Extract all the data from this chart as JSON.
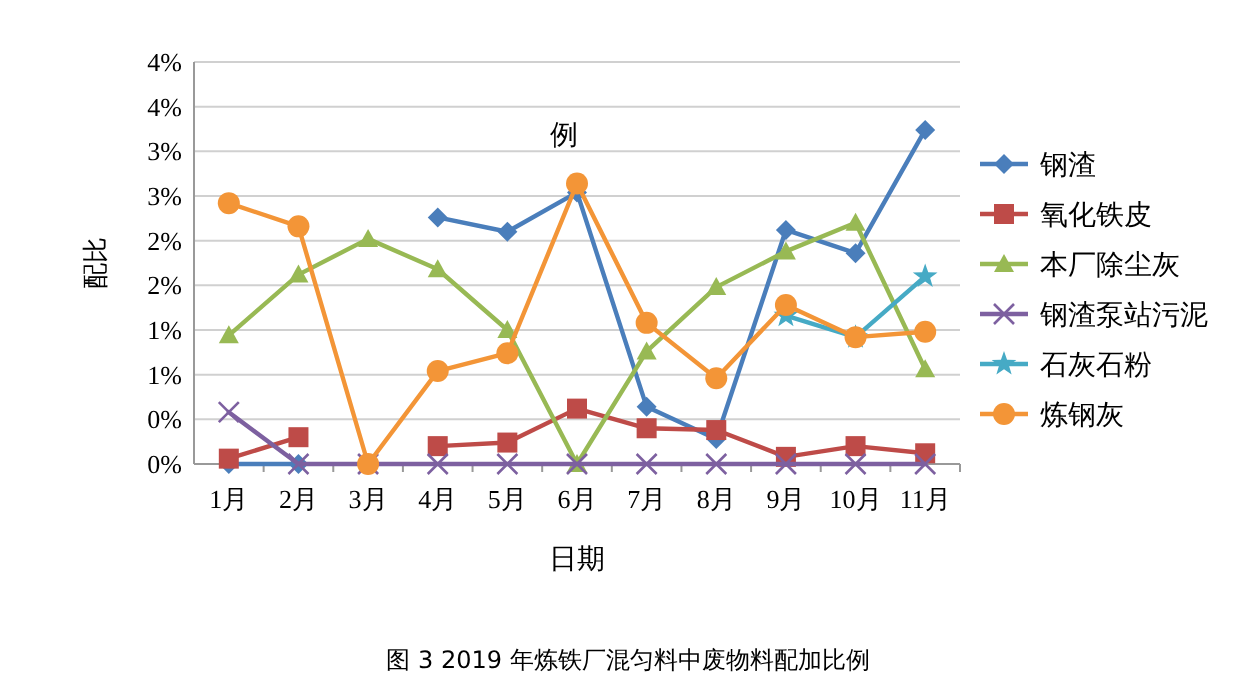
{
  "chart_data": {
    "type": "line",
    "categories": [
      "1月",
      "2月",
      "3月",
      "4月",
      "5月",
      "6月",
      "7月",
      "8月",
      "9月",
      "10月",
      "11月"
    ],
    "xlabel": "日期",
    "ylabel": "配比",
    "ylim": [
      0,
      4.5
    ],
    "yticks": [
      {
        "value": 0,
        "label": "0%"
      },
      {
        "value": 0.5,
        "label": "0%"
      },
      {
        "value": 1,
        "label": "1%"
      },
      {
        "value": 1.5,
        "label": "1%"
      },
      {
        "value": 2,
        "label": "2%"
      },
      {
        "value": 2.5,
        "label": "2%"
      },
      {
        "value": 3,
        "label": "3%"
      },
      {
        "value": 3.5,
        "label": "3%"
      },
      {
        "value": 4,
        "label": "4%"
      },
      {
        "value": 4.5,
        "label": "4%"
      }
    ],
    "grid": "y",
    "legend": "right",
    "series": [
      {
        "name": "钢渣",
        "color": "#4a7ebb",
        "marker": "diamond",
        "values": [
          0,
          0,
          null,
          2.76,
          2.6,
          3.04,
          0.64,
          0.28,
          2.62,
          2.36,
          3.74
        ]
      },
      {
        "name": "氧化铁皮",
        "color": "#be4b48",
        "marker": "square",
        "values": [
          0.06,
          0.3,
          null,
          0.2,
          0.24,
          0.62,
          0.4,
          0.38,
          0.08,
          0.2,
          0.12
        ]
      },
      {
        "name": "本厂除尘灰",
        "color": "#98b954",
        "marker": "triangle",
        "values": [
          1.44,
          2.12,
          2.52,
          2.18,
          1.5,
          0,
          1.26,
          1.98,
          2.38,
          2.7,
          1.06
        ]
      },
      {
        "name": "钢渣泵站污泥",
        "color": "#7d60a0",
        "marker": "cross",
        "values": [
          0.58,
          0,
          0,
          0,
          0,
          0,
          0,
          0,
          0,
          0,
          0
        ]
      },
      {
        "name": "石灰石粉",
        "color": "#46aac5",
        "marker": "star",
        "values": [
          null,
          null,
          null,
          null,
          null,
          null,
          null,
          null,
          1.66,
          1.42,
          2.1
        ]
      },
      {
        "name": "炼钢灰",
        "color": "#f39537",
        "marker": "circle",
        "values": [
          2.92,
          2.66,
          0,
          1.04,
          1.24,
          3.14,
          1.58,
          0.96,
          1.78,
          1.42,
          1.48
        ]
      }
    ],
    "annotations": [
      "例",
      "图 3  2019 年炼铁厂混匀料中废物料配加比例"
    ]
  }
}
